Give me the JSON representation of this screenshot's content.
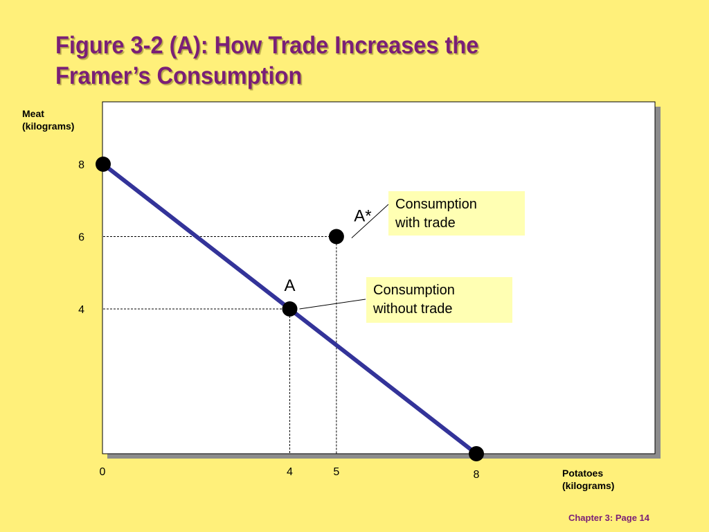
{
  "title": {
    "line1": "Figure 3-2 (A): How Trade Increases the",
    "line2": "Framer’s Consumption"
  },
  "footer": "Chapter 3: Page 14",
  "colors": {
    "background": "#FFF07A",
    "title": "#7A1F77",
    "line": "#333399",
    "callout_fill": "#FFFFB3"
  },
  "chart_data": {
    "type": "line",
    "xlabel": [
      "Potatoes",
      "(kilograms)"
    ],
    "ylabel": [
      "Meat",
      "(kilograms)"
    ],
    "xlim": [
      0,
      8
    ],
    "ylim": [
      0,
      8
    ],
    "x_ticks": [
      {
        "value": 0,
        "label": "0"
      },
      {
        "value": 4,
        "label": "4"
      },
      {
        "value": 5,
        "label": "5"
      },
      {
        "value": 8,
        "label": "8"
      }
    ],
    "y_ticks": [
      {
        "value": 4,
        "label": "4"
      },
      {
        "value": 6,
        "label": "6"
      },
      {
        "value": 8,
        "label": "8"
      }
    ],
    "grid": false,
    "series": [
      {
        "points": [
          {
            "x": 0,
            "y": 8
          },
          {
            "x": 8,
            "y": 0
          }
        ]
      }
    ],
    "points": [
      {
        "id": "A",
        "label": "A",
        "x": 4,
        "y": 4,
        "callout": [
          "Consumption",
          "without trade"
        ]
      },
      {
        "id": "Astar",
        "label": "A*",
        "x": 5,
        "y": 6,
        "callout": [
          "Consumption",
          "with trade"
        ]
      }
    ]
  }
}
